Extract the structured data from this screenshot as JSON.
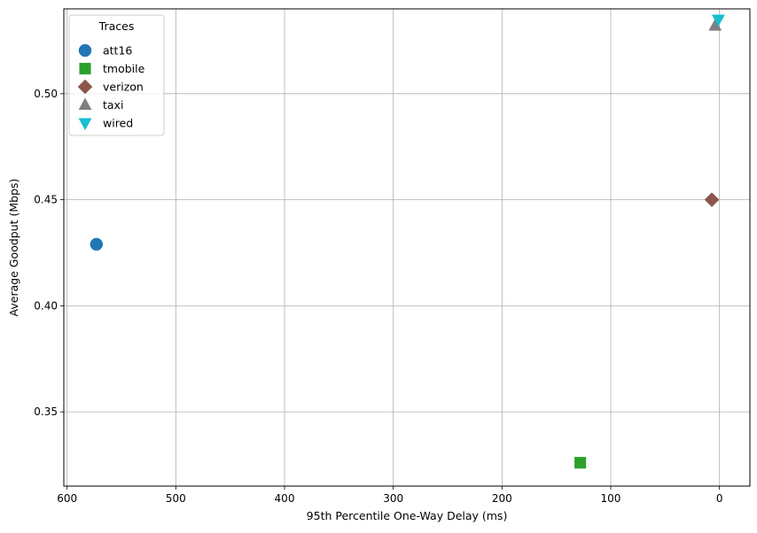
{
  "chart_data": {
    "type": "scatter",
    "title": "",
    "xlabel": "95th Percentile One-Way Delay (ms)",
    "ylabel": "Average Goodput (Mbps)",
    "xlim": [
      603,
      -28
    ],
    "ylim": [
      0.315,
      0.54
    ],
    "x_inverted": true,
    "x_ticks": [
      600,
      500,
      400,
      300,
      200,
      100,
      0
    ],
    "y_ticks": [
      0.35,
      0.4,
      0.45,
      0.5
    ],
    "y_tick_labels": [
      "0.35",
      "0.40",
      "0.45",
      "0.50"
    ],
    "grid": true,
    "legend": {
      "title": "Traces",
      "placement": "top-left"
    },
    "series": [
      {
        "name": "att16",
        "marker": "circle",
        "color": "#1f77b4",
        "points": [
          {
            "x": 573,
            "y": 0.429
          }
        ]
      },
      {
        "name": "tmobile",
        "marker": "square",
        "color": "#2ca02c",
        "points": [
          {
            "x": 128,
            "y": 0.326
          }
        ]
      },
      {
        "name": "verizon",
        "marker": "diamond",
        "color": "#8c564b",
        "points": [
          {
            "x": 7,
            "y": 0.45
          }
        ]
      },
      {
        "name": "taxi",
        "marker": "triangle-up",
        "color": "#7f7f7f",
        "points": [
          {
            "x": 4,
            "y": 0.532
          }
        ]
      },
      {
        "name": "wired",
        "marker": "triangle-down",
        "color": "#17becf",
        "points": [
          {
            "x": 1,
            "y": 0.535
          }
        ]
      }
    ]
  }
}
